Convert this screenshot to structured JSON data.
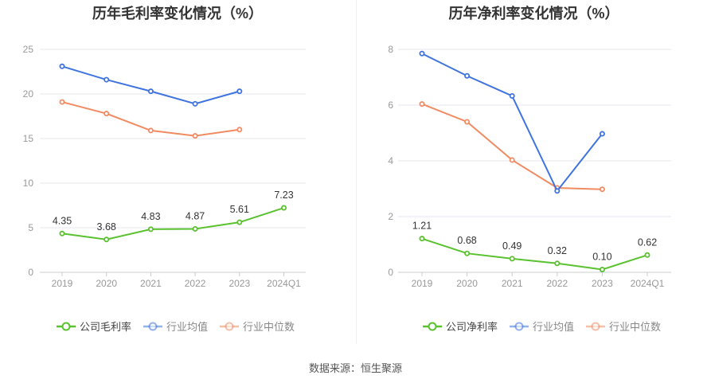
{
  "source_text": "数据来源：恒生聚源",
  "chart_data": [
    {
      "type": "line",
      "title": "历年毛利率变化情况（%）",
      "categories": [
        "2019",
        "2020",
        "2021",
        "2022",
        "2023",
        "2024Q1"
      ],
      "ylim": [
        0,
        25
      ],
      "yticks": [
        "0",
        "5",
        "10",
        "15",
        "20",
        "25"
      ],
      "grid": true,
      "legend_position": "bottom",
      "series": [
        {
          "name": "公司毛利率",
          "color": "#5ac12f",
          "values": [
            4.35,
            3.68,
            4.83,
            4.87,
            5.61,
            7.23
          ],
          "labels": [
            "4.35",
            "3.68",
            "4.83",
            "4.87",
            "5.61",
            "7.23"
          ]
        },
        {
          "name": "行业均值",
          "color": "#3f74e0",
          "values": [
            23.1,
            21.6,
            20.3,
            18.9,
            20.3,
            null
          ]
        },
        {
          "name": "行业中位数",
          "color": "#f08b62",
          "values": [
            19.1,
            17.8,
            15.9,
            15.3,
            16.0,
            null
          ]
        }
      ]
    },
    {
      "type": "line",
      "title": "历年净利率变化情况（%）",
      "categories": [
        "2019",
        "2020",
        "2021",
        "2022",
        "2023",
        "2024Q1"
      ],
      "ylim": [
        0,
        8
      ],
      "yticks": [
        "0",
        "2",
        "4",
        "6",
        "8"
      ],
      "grid": true,
      "legend_position": "bottom",
      "series": [
        {
          "name": "公司净利率",
          "color": "#5ac12f",
          "values": [
            1.21,
            0.68,
            0.49,
            0.32,
            0.1,
            0.62
          ],
          "labels": [
            "1.21",
            "0.68",
            "0.49",
            "0.32",
            "0.10",
            "0.62"
          ]
        },
        {
          "name": "行业均值",
          "color": "#3f74e0",
          "values": [
            7.85,
            7.05,
            6.33,
            2.92,
            4.97,
            null
          ]
        },
        {
          "name": "行业中位数",
          "color": "#f08b62",
          "values": [
            6.04,
            5.4,
            4.03,
            3.03,
            2.98,
            null
          ]
        }
      ]
    }
  ]
}
